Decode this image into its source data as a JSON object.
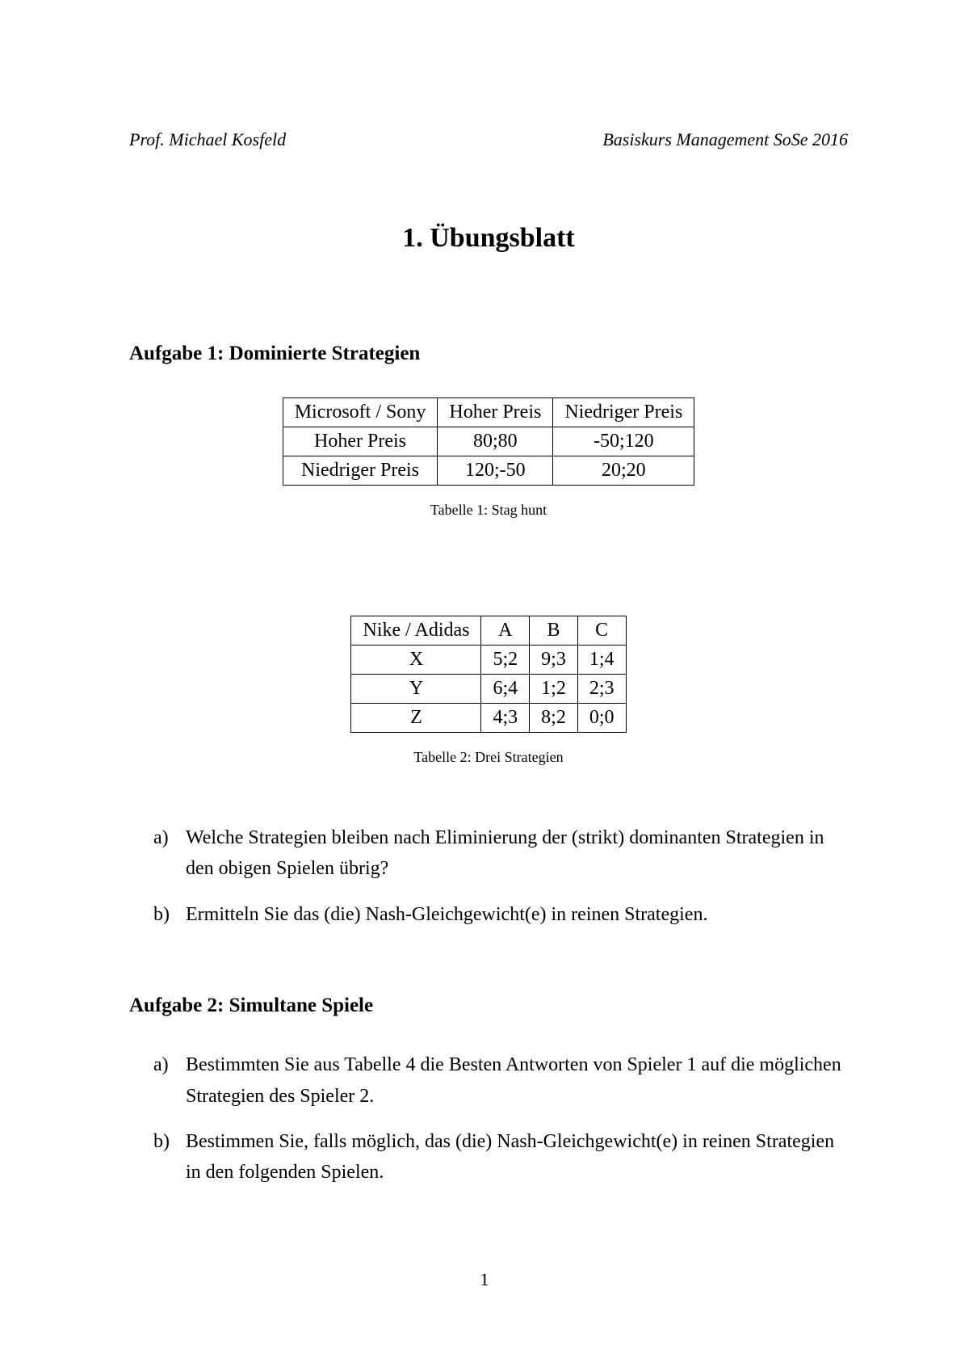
{
  "header": {
    "left": "Prof. Michael Kosfeld",
    "right": "Basiskurs Management SoSe 2016"
  },
  "title": "1. Übungsblatt",
  "aufgabe1": {
    "heading": "Aufgabe 1: Dominierte Strategien",
    "table1": {
      "header": [
        "Microsoft / Sony",
        "Hoher Preis",
        "Niedriger Preis"
      ],
      "rows": [
        [
          "Hoher Preis",
          "80;80",
          "-50;120"
        ],
        [
          "Niedriger Preis",
          "120;-50",
          "20;20"
        ]
      ],
      "caption": "Tabelle 1: Stag hunt"
    },
    "table2": {
      "header": [
        "Nike / Adidas",
        "A",
        "B",
        "C"
      ],
      "rows": [
        [
          "X",
          "5;2",
          "9;3",
          "1;4"
        ],
        [
          "Y",
          "6;4",
          "1;2",
          "2;3"
        ],
        [
          "Z",
          "4;3",
          "8;2",
          "0;0"
        ]
      ],
      "caption": "Tabelle 2: Drei Strategien"
    },
    "items": [
      {
        "marker": "a)",
        "text": "Welche Strategien bleiben nach Eliminierung der (strikt) dominanten Strategien in den obigen Spielen übrig?"
      },
      {
        "marker": "b)",
        "text": "Ermitteln Sie das (die) Nash-Gleichgewicht(e) in reinen Strategien."
      }
    ]
  },
  "aufgabe2": {
    "heading": "Aufgabe 2: Simultane Spiele",
    "items": [
      {
        "marker": "a)",
        "text": "Bestimmten Sie aus Tabelle 4 die Besten Antworten von Spieler 1 auf die möglichen Strategien des Spieler 2."
      },
      {
        "marker": "b)",
        "text": "Bestimmen Sie, falls möglich, das (die) Nash-Gleichgewicht(e) in reinen Strategien in den folgenden Spielen."
      }
    ]
  },
  "pageNumber": "1",
  "style": {
    "background": "#ffffff",
    "text_color": "#000000",
    "border_color": "#000000",
    "title_fontsize": 34,
    "body_fontsize": 24,
    "caption_fontsize": 18,
    "header_fontsize": 22
  }
}
